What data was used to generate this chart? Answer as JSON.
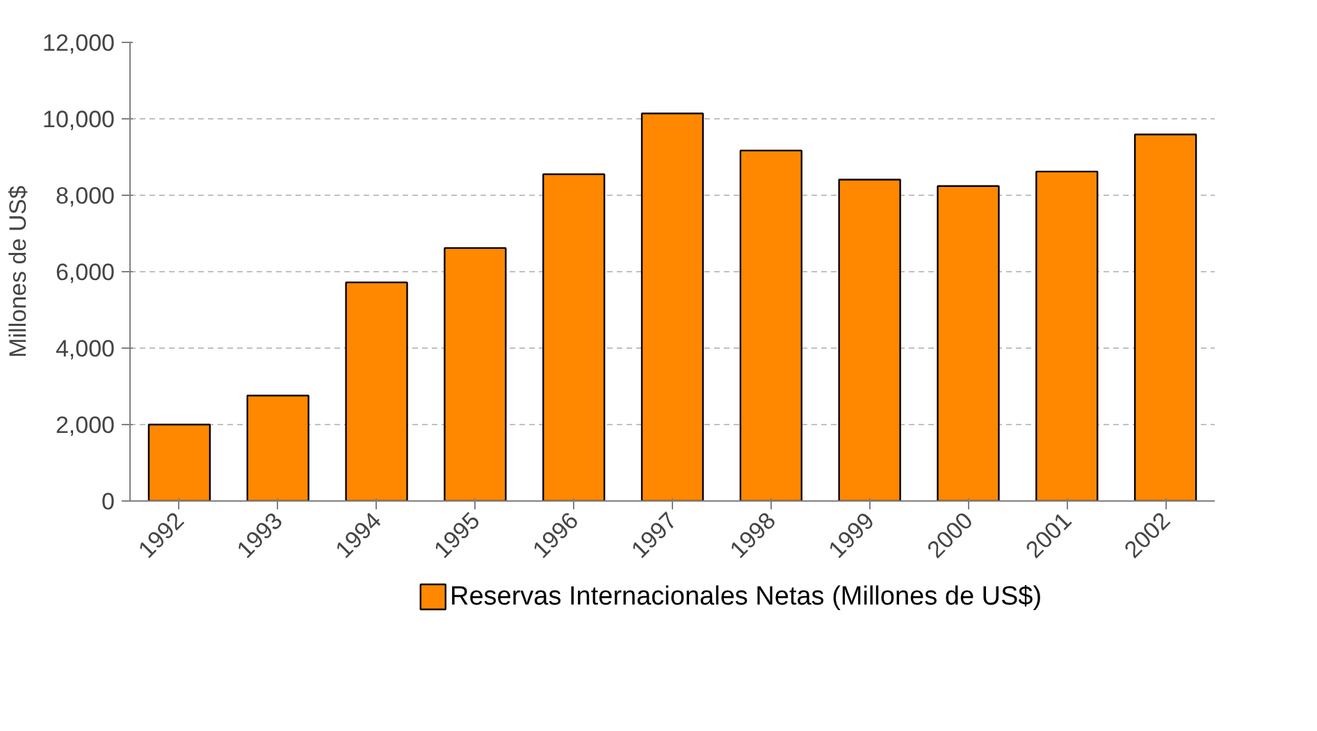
{
  "chart_data": {
    "type": "bar",
    "ylabel": "Millones de US$",
    "categories": [
      "1992",
      "1993",
      "1994",
      "1995",
      "1996",
      "1997",
      "1998",
      "1999",
      "2000",
      "2001",
      "2002"
    ],
    "series": [
      {
        "name": "Reservas Internacionales Netas (Millones de US$)",
        "color": "#ff8800",
        "values": [
          2000,
          2760,
          5720,
          6620,
          8550,
          10140,
          9170,
          8410,
          8240,
          8620,
          9590
        ]
      }
    ],
    "ylim": [
      0,
      12000
    ],
    "yticks": [
      {
        "value": 0,
        "label": "0"
      },
      {
        "value": 2000,
        "label": "2,000"
      },
      {
        "value": 4000,
        "label": "4,000"
      },
      {
        "value": 6000,
        "label": "6,000"
      },
      {
        "value": 8000,
        "label": "8,000"
      },
      {
        "value": 10000,
        "label": "10,000"
      },
      {
        "value": 12000,
        "label": "12,000"
      }
    ],
    "grid": "y",
    "legend": "bottom"
  }
}
